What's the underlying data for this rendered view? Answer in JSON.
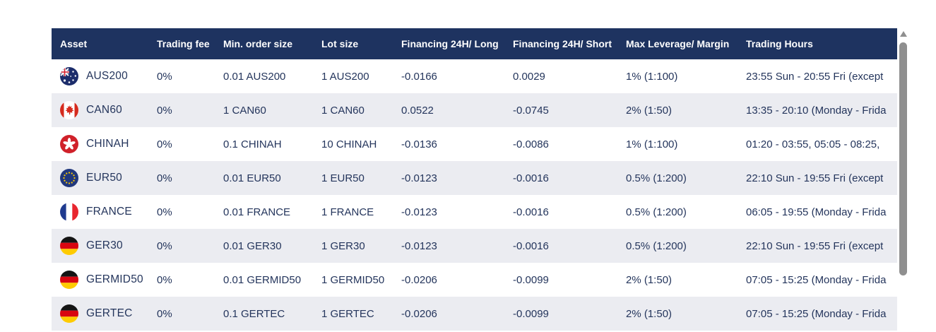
{
  "table": {
    "columns": [
      {
        "id": "asset",
        "label": "Asset"
      },
      {
        "id": "fee",
        "label": "Trading fee"
      },
      {
        "id": "min_order",
        "label": "Min. order size"
      },
      {
        "id": "lot",
        "label": "Lot size"
      },
      {
        "id": "fin_long",
        "label": "Financing 24H/ Long"
      },
      {
        "id": "fin_short",
        "label": "Financing 24H/ Short"
      },
      {
        "id": "leverage",
        "label": "Max Leverage/ Margin"
      },
      {
        "id": "hours",
        "label": "Trading Hours"
      }
    ],
    "rows": [
      {
        "asset": "AUS200",
        "flag": "flag-australia",
        "fee": "0%",
        "min_order": "0.01 AUS200",
        "lot": "1 AUS200",
        "fin_long": "-0.0166",
        "fin_short": "0.0029",
        "leverage": "1% (1:100)",
        "hours": "23:55 Sun - 20:55 Fri (except"
      },
      {
        "asset": "CAN60",
        "flag": "flag-canada",
        "fee": "0%",
        "min_order": "1 CAN60",
        "lot": "1 CAN60",
        "fin_long": "0.0522",
        "fin_short": "-0.0745",
        "leverage": "2% (1:50)",
        "hours": "13:35 - 20:10 (Monday - Frida"
      },
      {
        "asset": "CHINAH",
        "flag": "flag-hongkong",
        "fee": "0%",
        "min_order": "0.1 CHINAH",
        "lot": "10 CHINAH",
        "fin_long": "-0.0136",
        "fin_short": "-0.0086",
        "leverage": "1% (1:100)",
        "hours": "01:20 - 03:55, 05:05 - 08:25,"
      },
      {
        "asset": "EUR50",
        "flag": "flag-eu",
        "fee": "0%",
        "min_order": "0.01 EUR50",
        "lot": "1 EUR50",
        "fin_long": "-0.0123",
        "fin_short": "-0.0016",
        "leverage": "0.5% (1:200)",
        "hours": "22:10 Sun - 19:55 Fri (except"
      },
      {
        "asset": "FRANCE",
        "flag": "flag-france",
        "fee": "0%",
        "min_order": "0.01 FRANCE",
        "lot": "1 FRANCE",
        "fin_long": "-0.0123",
        "fin_short": "-0.0016",
        "leverage": "0.5% (1:200)",
        "hours": "06:05 - 19:55 (Monday - Frida"
      },
      {
        "asset": "GER30",
        "flag": "flag-germany",
        "fee": "0%",
        "min_order": "0.01 GER30",
        "lot": "1 GER30",
        "fin_long": "-0.0123",
        "fin_short": "-0.0016",
        "leverage": "0.5% (1:200)",
        "hours": "22:10 Sun - 19:55 Fri (except"
      },
      {
        "asset": "GERMID50",
        "flag": "flag-germany",
        "fee": "0%",
        "min_order": "0.01 GERMID50",
        "lot": "1 GERMID50",
        "fin_long": "-0.0206",
        "fin_short": "-0.0099",
        "leverage": "2% (1:50)",
        "hours": "07:05 - 15:25 (Monday - Frida"
      },
      {
        "asset": "GERTEC",
        "flag": "flag-germany",
        "fee": "0%",
        "min_order": "0.1 GERTEC",
        "lot": "1 GERTEC",
        "fin_long": "-0.0206",
        "fin_short": "-0.0099",
        "leverage": "2% (1:50)",
        "hours": "07:05 - 15:25 (Monday - Frida"
      }
    ]
  },
  "colors": {
    "header_bg": "#1e3360",
    "header_text": "#ffffff",
    "row_text": "#24355c",
    "stripe_bg": "#ebecf1",
    "scrollbar": "#8f8f8f"
  },
  "scrollbar": {
    "orientation": "vertical",
    "position": "upper"
  }
}
